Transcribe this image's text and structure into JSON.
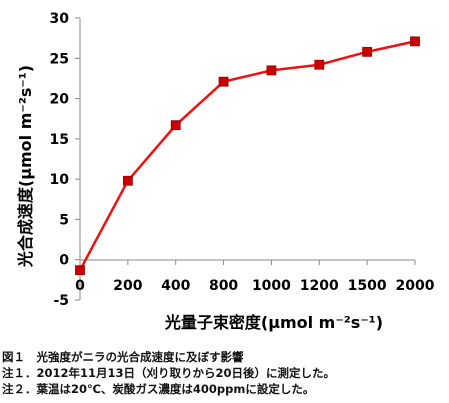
{
  "chart_data": {
    "type": "line",
    "x": [
      "0",
      "200",
      "400",
      "800",
      "1000",
      "1200",
      "1500",
      "2000"
    ],
    "series": [
      {
        "values": [
          -1.3,
          9.8,
          16.7,
          22.1,
          23.5,
          24.2,
          25.8,
          27.1
        ],
        "color": "#ee1111",
        "marker_color": "#cc0000"
      }
    ],
    "ylim": [
      -5,
      30
    ],
    "yticks": [
      "-5",
      "0",
      "5",
      "10",
      "15",
      "20",
      "25",
      "30"
    ],
    "xlabel": "光量子束密度(μmol m⁻²s⁻¹)",
    "ylabel": "光合成速度(μmol m⁻²s⁻¹)",
    "grid": false
  },
  "captions": {
    "fig": "図１　光強度がニラの光合成速度に及ぼす影響",
    "note1": "注１．2012年11月13日（刈り取りから20日後）に測定した。",
    "note2": "注２．葉温は20℃、炭酸ガス濃度は400ppmに設定した。"
  }
}
